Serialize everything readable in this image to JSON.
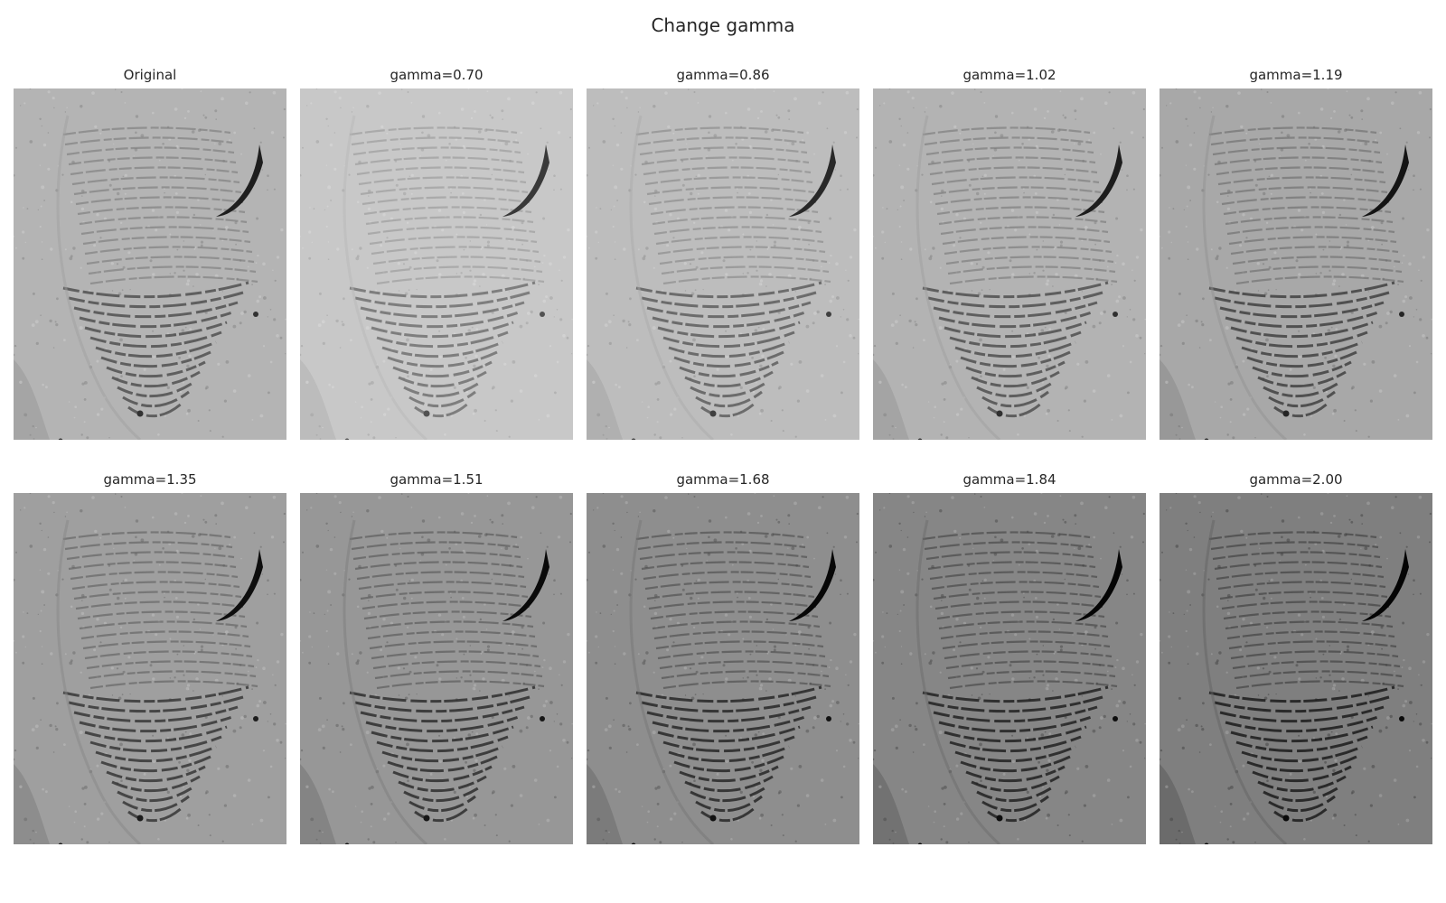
{
  "figure": {
    "title": "Change gamma"
  },
  "panels": [
    {
      "label": "Original",
      "gamma": 1.0
    },
    {
      "label": "gamma=0.70",
      "gamma": 0.7
    },
    {
      "label": "gamma=0.86",
      "gamma": 0.86
    },
    {
      "label": "gamma=1.02",
      "gamma": 1.02
    },
    {
      "label": "gamma=1.19",
      "gamma": 1.19
    },
    {
      "label": "gamma=1.35",
      "gamma": 1.35
    },
    {
      "label": "gamma=1.51",
      "gamma": 1.51
    },
    {
      "label": "gamma=1.68",
      "gamma": 1.68
    },
    {
      "label": "gamma=1.84",
      "gamma": 1.84
    },
    {
      "label": "gamma=2.00",
      "gamma": 2.0
    }
  ],
  "image": {
    "subject": "fingerprint-image",
    "base_gray": "#b4b4b4",
    "ridge_color": "#4a4a4a",
    "shadow_color": "#1e1e1e"
  }
}
